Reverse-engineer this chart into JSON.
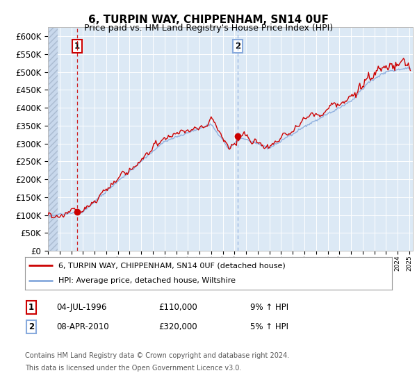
{
  "title": "6, TURPIN WAY, CHIPPENHAM, SN14 0UF",
  "subtitle": "Price paid vs. HM Land Registry's House Price Index (HPI)",
  "ylim": [
    0,
    625000
  ],
  "yticks": [
    0,
    50000,
    100000,
    150000,
    200000,
    250000,
    300000,
    350000,
    400000,
    450000,
    500000,
    550000,
    600000
  ],
  "bg_color": "#dce9f5",
  "grid_color": "#ffffff",
  "sale1_x": 1996.5,
  "sale1_price": 110000,
  "sale2_x": 2010.27,
  "sale2_price": 320000,
  "legend_house": "6, TURPIN WAY, CHIPPENHAM, SN14 0UF (detached house)",
  "legend_hpi": "HPI: Average price, detached house, Wiltshire",
  "line_color_house": "#cc0000",
  "line_color_hpi": "#88aadd",
  "xmin": 1994.0,
  "xmax": 2025.3,
  "footnote1": "Contains HM Land Registry data © Crown copyright and database right 2024.",
  "footnote2": "This data is licensed under the Open Government Licence v3.0."
}
